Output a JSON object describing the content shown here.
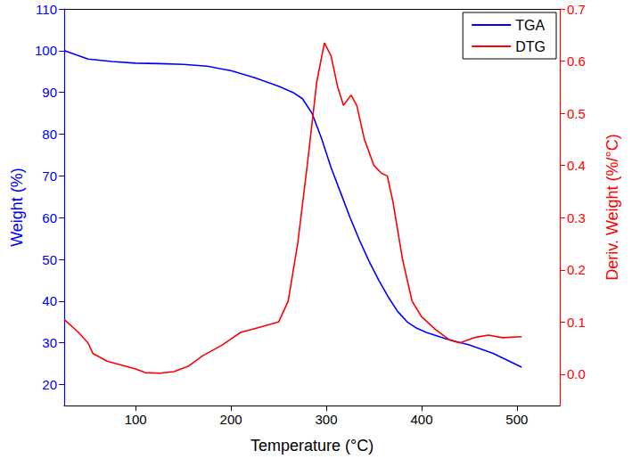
{
  "chart_data": {
    "type": "line",
    "x_label": "Temperature (°C)",
    "y_label": "Weight (%)",
    "y2_label": "Deriv. Weight (%/°C)",
    "xlim": [
      25,
      545
    ],
    "xticks": [
      100,
      200,
      300,
      400,
      500
    ],
    "ylim": [
      15,
      110
    ],
    "yticks": [
      20,
      30,
      40,
      50,
      60,
      70,
      80,
      90,
      100,
      110
    ],
    "y2lim": [
      -0.06,
      0.7
    ],
    "y2ticks": [
      {
        "value": 0,
        "label": "0.0"
      },
      0.1,
      0.2,
      0.3,
      0.4,
      0.5,
      0.6,
      0.7
    ],
    "grid": false,
    "legend": "upper right",
    "series": [
      {
        "name": "TGA",
        "color": "#0000ff",
        "line_style": "solid",
        "x": [
          25,
          50,
          75,
          100,
          125,
          150,
          175,
          200,
          225,
          250,
          265,
          275,
          285,
          295,
          305,
          315,
          325,
          335,
          345,
          355,
          365,
          375,
          385,
          395,
          405,
          425,
          450,
          475,
          505
        ],
        "values": [
          100,
          98,
          97.4,
          97,
          96.9,
          96.7,
          96.3,
          95.2,
          93.5,
          91.5,
          90,
          88.5,
          85,
          79,
          72,
          66,
          60,
          54.5,
          49.5,
          45,
          41,
          37.5,
          35,
          33.5,
          32.5,
          31,
          29.5,
          27.5,
          24.2
        ]
      },
      {
        "name": "DTG",
        "color": "#ff0000",
        "line_style": "solid",
        "axis": "y2",
        "x": [
          25,
          40,
          50,
          55,
          70,
          100,
          110,
          125,
          140,
          155,
          170,
          190,
          210,
          230,
          250,
          260,
          270,
          280,
          290,
          298,
          305,
          312,
          318,
          326,
          332,
          340,
          350,
          358,
          364,
          370,
          380,
          390,
          400,
          415,
          430,
          440,
          455,
          470,
          485,
          505
        ],
        "values": [
          0.105,
          0.08,
          0.06,
          0.04,
          0.025,
          0.01,
          0.003,
          0.002,
          0.005,
          0.015,
          0.035,
          0.055,
          0.08,
          0.09,
          0.1,
          0.14,
          0.25,
          0.4,
          0.56,
          0.635,
          0.61,
          0.55,
          0.515,
          0.535,
          0.515,
          0.45,
          0.4,
          0.385,
          0.38,
          0.33,
          0.22,
          0.14,
          0.11,
          0.085,
          0.065,
          0.06,
          0.07,
          0.075,
          0.07,
          0.072
        ]
      }
    ]
  }
}
